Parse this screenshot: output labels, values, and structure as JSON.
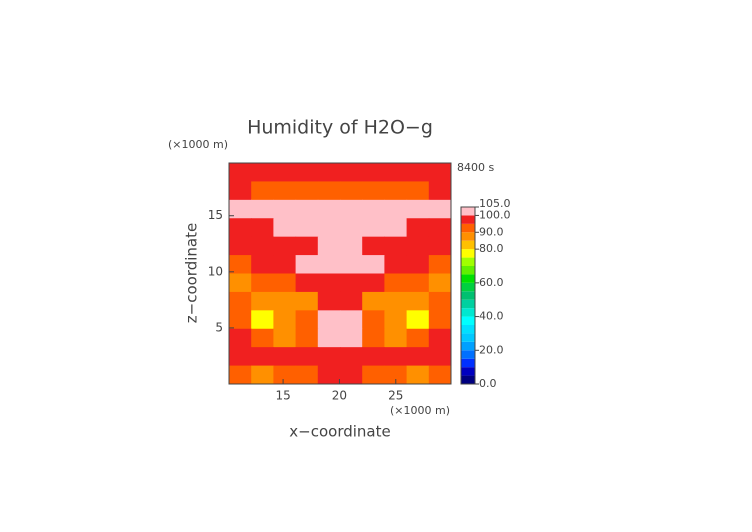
{
  "chart_data": {
    "type": "contour",
    "title": "Humidity of H2O−g",
    "time_label": "8400 s",
    "x_unit": "(×1000 m)",
    "y_unit": "(×1000 m)",
    "xlabel": "x−coordinate",
    "ylabel": "z−coordinate",
    "xlim": [
      10.2,
      29.9
    ],
    "ylim": [
      0,
      19.7
    ],
    "xticks": [
      15,
      20,
      25
    ],
    "yticks": [
      5,
      10,
      15
    ],
    "z": [
      [
        97,
        96,
        95,
        96,
        97,
        97,
        96,
        95,
        96,
        97
      ],
      [
        96,
        93,
        92,
        92,
        92,
        92,
        92,
        92,
        93,
        96
      ],
      [
        102,
        102,
        102,
        102,
        102,
        102,
        102,
        102,
        102,
        102
      ],
      [
        96,
        98,
        102,
        102,
        102,
        102,
        102,
        102,
        98,
        96
      ],
      [
        97,
        96,
        95,
        97,
        102,
        102,
        97,
        95,
        96,
        97
      ],
      [
        93,
        95,
        97,
        102,
        102,
        102,
        102,
        97,
        95,
        93
      ],
      [
        88,
        90,
        92,
        95,
        97,
        97,
        95,
        92,
        90,
        88
      ],
      [
        90,
        87,
        85,
        88,
        95,
        95,
        88,
        85,
        87,
        90
      ],
      [
        92,
        78,
        86,
        90,
        102,
        102,
        90,
        86,
        78,
        92
      ],
      [
        95,
        90,
        88,
        92,
        102,
        102,
        92,
        88,
        90,
        95
      ],
      [
        97,
        96,
        95,
        96,
        98,
        98,
        96,
        95,
        96,
        97
      ],
      [
        92,
        88,
        90,
        92,
        96,
        96,
        92,
        90,
        88,
        92
      ]
    ],
    "levels": [
      0,
      5,
      10,
      15,
      20,
      25,
      30,
      35,
      40,
      45,
      50,
      55,
      60,
      65,
      70,
      75,
      80,
      85,
      90,
      95,
      100,
      105
    ],
    "colors": [
      "#000080",
      "#0000c0",
      "#0030ff",
      "#0070ff",
      "#00a0ff",
      "#00c8ff",
      "#00e0ff",
      "#00ffff",
      "#00e8d0",
      "#00d0a0",
      "#00c070",
      "#00d040",
      "#00e000",
      "#60f000",
      "#a0ff00",
      "#ffff00",
      "#ffc000",
      "#ff9000",
      "#ff6000",
      "#f02020",
      "#ffc0c8"
    ],
    "cticks": [
      {
        "value": 0,
        "label": "0.0"
      },
      {
        "value": 20,
        "label": "20.0"
      },
      {
        "value": 40,
        "label": "40.0"
      },
      {
        "value": 60,
        "label": "60.0"
      },
      {
        "value": 80,
        "label": "80.0"
      },
      {
        "value": 90,
        "label": "90.0"
      },
      {
        "value": 100,
        "label": "100.0"
      },
      {
        "value": 105,
        "label": "105.0"
      }
    ]
  }
}
